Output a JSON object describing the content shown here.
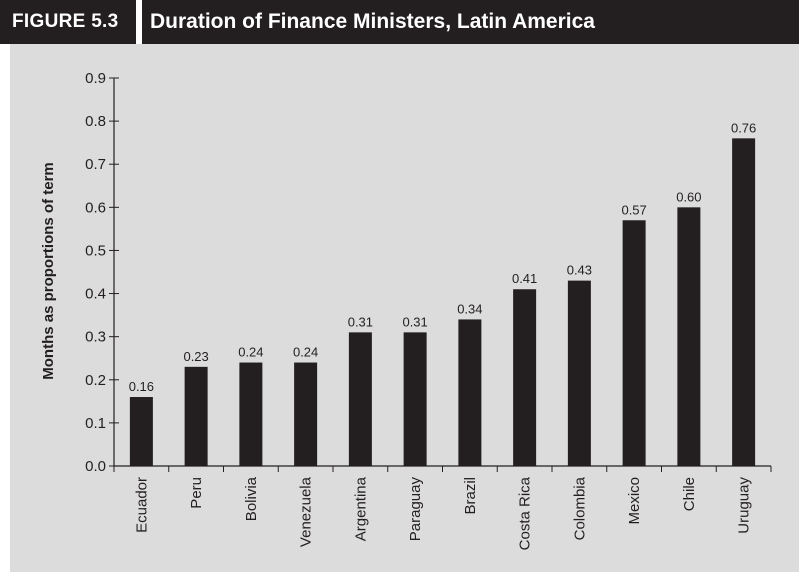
{
  "figure": {
    "label": "FIGURE",
    "number": "5.3",
    "title": "Duration of Finance Ministers, Latin America"
  },
  "colors": {
    "header_bg": "#231f20",
    "panel_bg": "#dcdcdc",
    "bar": "#231f20"
  },
  "chart_data": {
    "type": "bar",
    "title": "Duration of Finance Ministers, Latin America",
    "xlabel": "",
    "ylabel": "Months as proportions of term",
    "ylim": [
      0,
      0.9
    ],
    "yticks": [
      "0.0",
      "0.1",
      "0.2",
      "0.3",
      "0.4",
      "0.5",
      "0.6",
      "0.7",
      "0.8",
      "0.9"
    ],
    "categories": [
      "Ecuador",
      "Peru",
      "Bolivia",
      "Venezuela",
      "Argentina",
      "Paraguay",
      "Brazil",
      "Costa Rica",
      "Colombia",
      "Mexico",
      "Chile",
      "Uruguay"
    ],
    "values": [
      0.16,
      0.23,
      0.24,
      0.24,
      0.31,
      0.31,
      0.34,
      0.41,
      0.43,
      0.57,
      0.6,
      0.76
    ],
    "value_labels": [
      "0.16",
      "0.23",
      "0.24",
      "0.24",
      "0.31",
      "0.31",
      "0.34",
      "0.41",
      "0.43",
      "0.57",
      "0.60",
      "0.76"
    ],
    "grid": false,
    "legend": "none"
  }
}
